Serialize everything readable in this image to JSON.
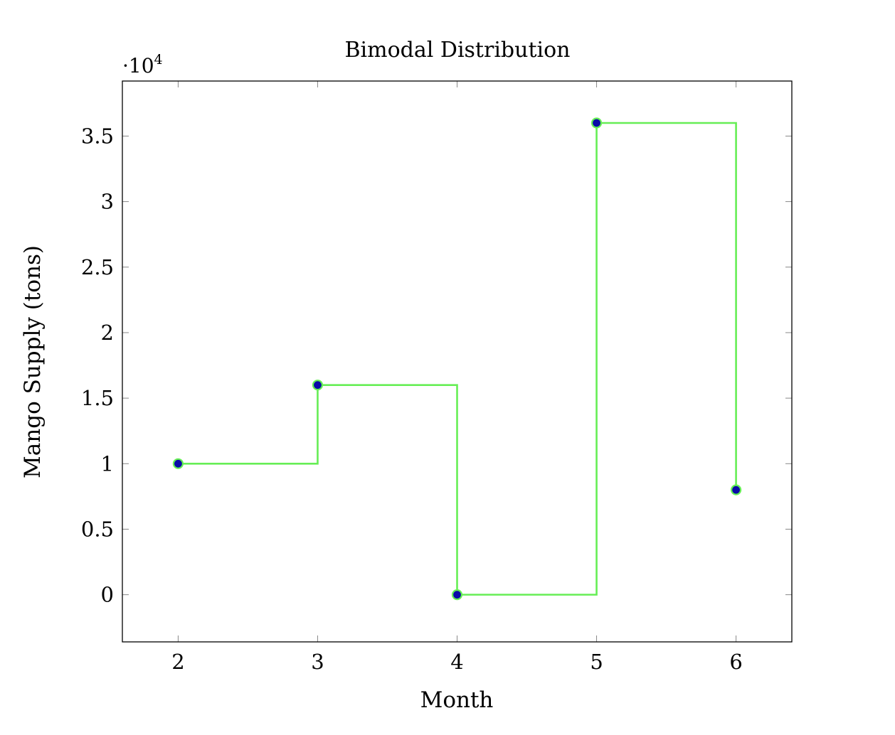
{
  "chart_data": {
    "type": "line",
    "step": "post",
    "title": "Bimodal Distribution",
    "xlabel": "Month",
    "ylabel": "Mango Supply (tons)",
    "y_scale_label": {
      "base": "·10",
      "exp": "4"
    },
    "y_scale_factor": 10000,
    "xlim": [
      1.6,
      6.4
    ],
    "ylim": [
      -3600,
      39200
    ],
    "x_ticks": [
      2,
      3,
      4,
      5,
      6
    ],
    "x_tick_labels": [
      "2",
      "3",
      "4",
      "5",
      "6"
    ],
    "y_ticks": [
      0,
      5000,
      10000,
      15000,
      20000,
      25000,
      30000,
      35000
    ],
    "y_tick_labels": [
      "0",
      "0.5",
      "1",
      "1.5",
      "2",
      "2.5",
      "3",
      "3.5"
    ],
    "grid": false,
    "line_color": "#66ee55",
    "marker_fill": "#0a0aa8",
    "marker_edge": "#66ee55",
    "series": [
      {
        "x": [
          2,
          3,
          4,
          5,
          6
        ],
        "y": [
          10000,
          16000,
          0,
          36000,
          8000
        ]
      }
    ]
  }
}
